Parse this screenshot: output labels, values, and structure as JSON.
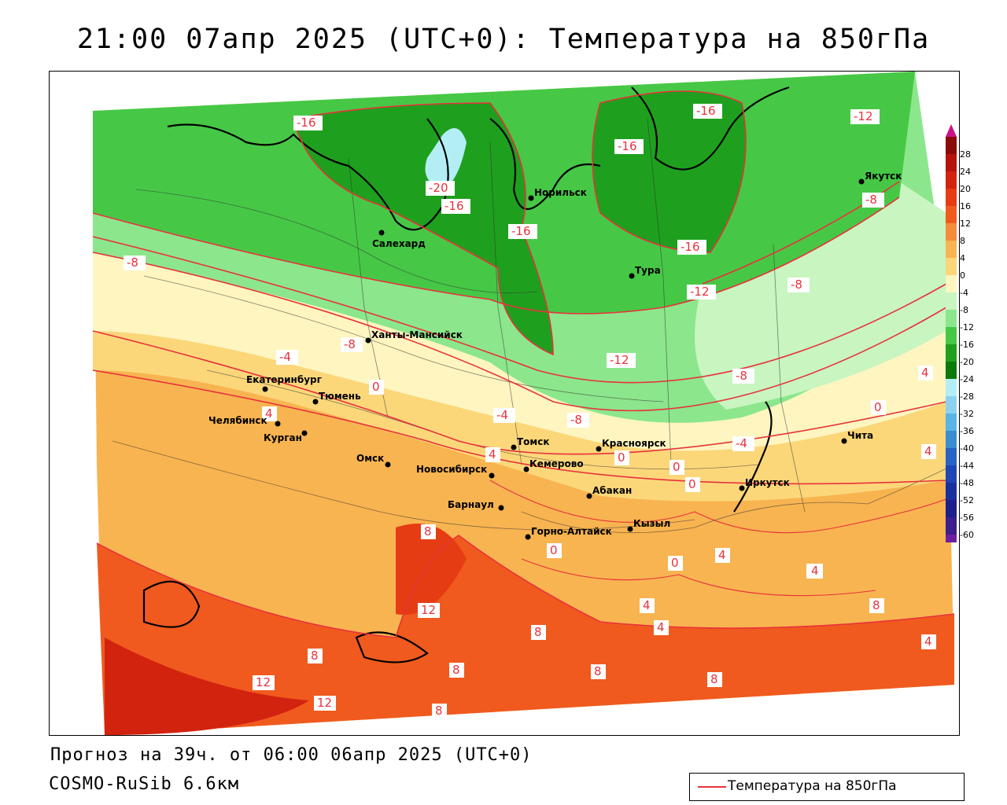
{
  "title": "21:00 07апр 2025 (UTC+0): Температура на 850гПа",
  "forecast_info": "Прогноз на 39ч. от 06:00 06апр 2025 (UTC+0)",
  "model": "COSMO-RuSib 6.6км",
  "legend": {
    "line_label": "Температура на 850гПа",
    "line_color": "#e8323c"
  },
  "colorbar": {
    "ticks": [
      "28",
      "24",
      "20",
      "16",
      "12",
      "8",
      "4",
      "0",
      "-4",
      "-8",
      "-12",
      "-16",
      "-20",
      "-24",
      "-28",
      "-32",
      "-36",
      "-40",
      "-44",
      "-48",
      "-52",
      "-56",
      "-60"
    ],
    "colors": [
      "#8b0a0a",
      "#b4140c",
      "#d2230f",
      "#e63c14",
      "#f05a1e",
      "#f58c3c",
      "#f8b450",
      "#fbd77a",
      "#fef5c0",
      "#c8f5c0",
      "#8ce68c",
      "#46c846",
      "#1ea01e",
      "#0a7a0a",
      "#b4eef5",
      "#8cd2f0",
      "#5ab4e6",
      "#3c8cd2",
      "#2864c3",
      "#1e46b4",
      "#1a30a0",
      "#1e1e8c",
      "#3c1e8c",
      "#6e1e9e"
    ],
    "top_arrow_color": "#c8148c",
    "bottom_arrow_color": "#8c28b4"
  },
  "cities": [
    {
      "name": "Салехард"
    },
    {
      "name": "Норильск"
    },
    {
      "name": "Якутск"
    },
    {
      "name": "Тура"
    },
    {
      "name": "Ханты-Мансийск"
    },
    {
      "name": "Екатеринбург"
    },
    {
      "name": "Тюмень"
    },
    {
      "name": "Челябинск"
    },
    {
      "name": "Курган"
    },
    {
      "name": "Омск"
    },
    {
      "name": "Новосибирск"
    },
    {
      "name": "Томск"
    },
    {
      "name": "Кемерово"
    },
    {
      "name": "Красноярск"
    },
    {
      "name": "Барнаул"
    },
    {
      "name": "Абакан"
    },
    {
      "name": "Горно-Алтайск"
    },
    {
      "name": "Кызыл"
    },
    {
      "name": "Иркутск"
    },
    {
      "name": "Чита"
    }
  ],
  "isotherm_labels": [
    {
      "value": "-16"
    },
    {
      "value": "-20"
    },
    {
      "value": "-16"
    },
    {
      "value": "-16"
    },
    {
      "value": "-16"
    },
    {
      "value": "-16"
    },
    {
      "value": "-16"
    },
    {
      "value": "-12"
    },
    {
      "value": "-8"
    },
    {
      "value": "-8"
    },
    {
      "value": "-12"
    },
    {
      "value": "-8"
    },
    {
      "value": "-12"
    },
    {
      "value": "-8"
    },
    {
      "value": "-4"
    },
    {
      "value": "-8"
    },
    {
      "value": "-4"
    },
    {
      "value": "-8"
    },
    {
      "value": "-4"
    },
    {
      "value": "0"
    },
    {
      "value": "0"
    },
    {
      "value": "4"
    },
    {
      "value": "0"
    },
    {
      "value": "0"
    },
    {
      "value": "0"
    },
    {
      "value": "8"
    },
    {
      "value": "4"
    },
    {
      "value": "0"
    },
    {
      "value": "4"
    },
    {
      "value": "0"
    },
    {
      "value": "4"
    },
    {
      "value": "12"
    },
    {
      "value": "8"
    },
    {
      "value": "8"
    },
    {
      "value": "8"
    },
    {
      "value": "4"
    },
    {
      "value": "4"
    },
    {
      "value": "8"
    },
    {
      "value": "4"
    },
    {
      "value": "8"
    },
    {
      "value": "12"
    },
    {
      "value": "8"
    },
    {
      "value": "12"
    },
    {
      "value": "8"
    },
    {
      "value": "4"
    },
    {
      "value": "4"
    },
    {
      "value": "4"
    }
  ]
}
